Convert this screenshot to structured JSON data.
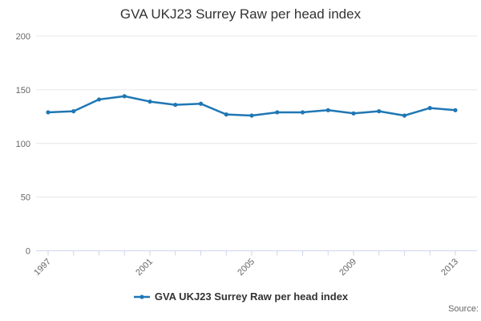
{
  "title": "GVA UKJ23 Surrey Raw per head index",
  "legend": {
    "label": "GVA UKJ23 Surrey Raw per head index"
  },
  "source": {
    "label": "Source:"
  },
  "colors": {
    "series": "#1f77b4",
    "axis_line": "#ccd6eb",
    "gridline": "#e6e6e6",
    "tick_label": "#666666",
    "title_text": "#333333",
    "legend_text": "#333333"
  },
  "chart_data": {
    "type": "line",
    "title": "GVA UKJ23 Surrey Raw per head index",
    "xlabel": "",
    "ylabel": "",
    "x": [
      1997,
      1998,
      1999,
      2000,
      2001,
      2002,
      2003,
      2004,
      2005,
      2006,
      2007,
      2008,
      2009,
      2010,
      2011,
      2012,
      2013
    ],
    "series": [
      {
        "name": "GVA UKJ23 Surrey Raw per head index",
        "values": [
          129,
          130,
          141,
          144,
          139,
          136,
          137,
          127,
          126,
          129,
          129,
          131,
          128,
          130,
          126,
          133,
          131
        ]
      }
    ],
    "ylim": [
      0,
      200
    ],
    "yticks": [
      0,
      50,
      100,
      150,
      200
    ],
    "xticks_labeled": [
      1997,
      2001,
      2005,
      2009,
      2013
    ],
    "grid": true,
    "legend_position": "bottom",
    "marker": "circle"
  }
}
